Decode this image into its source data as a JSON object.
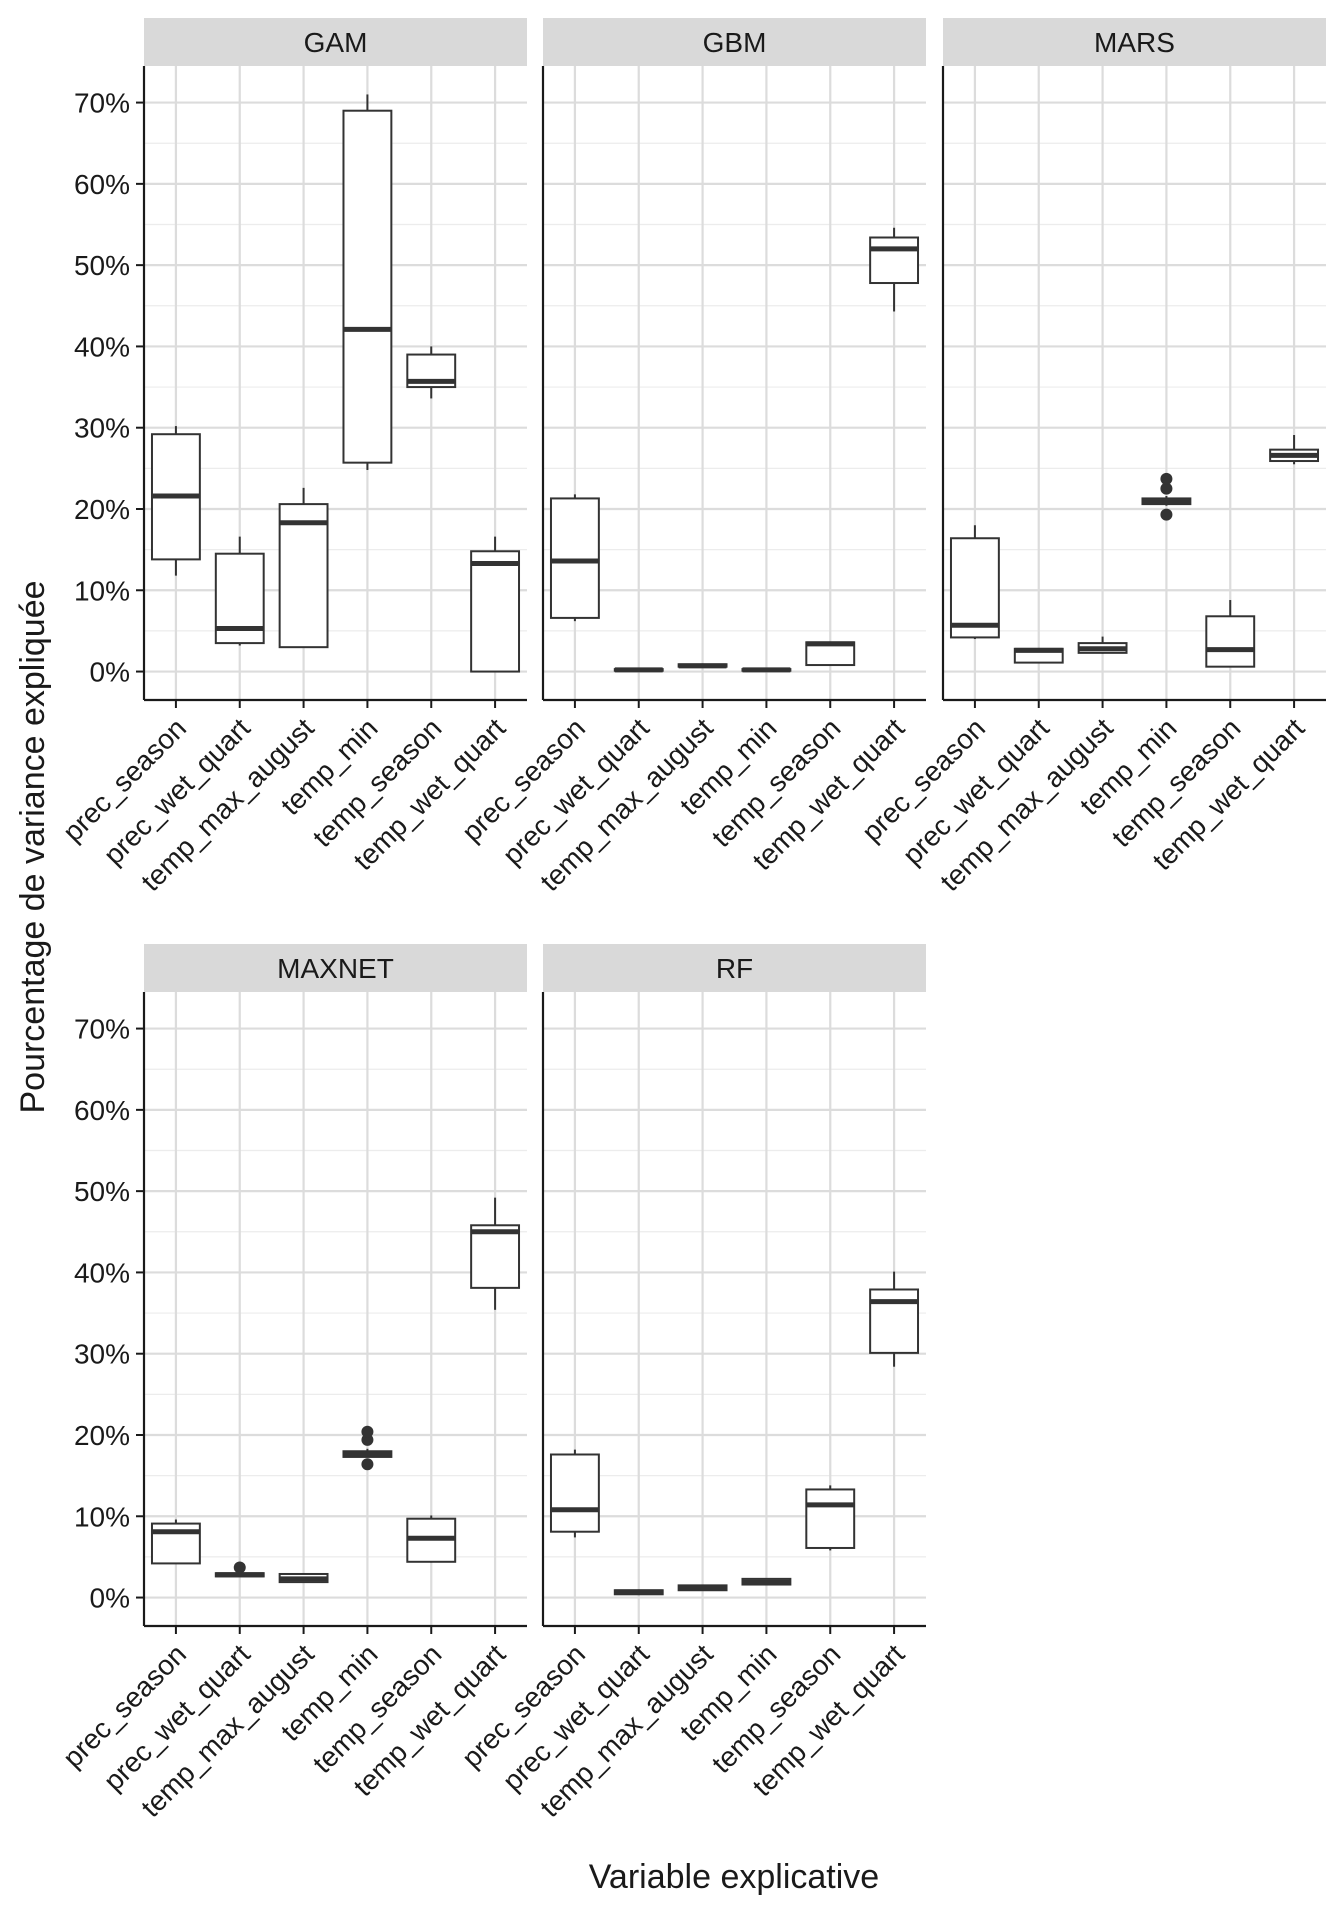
{
  "chart_data": {
    "type": "boxplot",
    "title": "",
    "xlabel": "Variable explicative",
    "ylabel": "Pourcentage de variance expliquée",
    "ylim": [
      -3.5,
      74.5
    ],
    "yticks": [
      0,
      10,
      20,
      30,
      40,
      50,
      60,
      70
    ],
    "ytick_labels": [
      "0%",
      "10%",
      "20%",
      "30%",
      "40%",
      "50%",
      "60%",
      "70%"
    ],
    "categories": [
      "prec_season",
      "prec_wet_quart",
      "temp_max_august",
      "temp_min",
      "temp_season",
      "temp_wet_quart"
    ],
    "grid": true,
    "panels": [
      {
        "name": "GAM",
        "boxes": [
          {
            "category": "prec_season",
            "whisker_low": 11.8,
            "q1": 13.8,
            "median": 21.6,
            "q3": 29.2,
            "whisker_high": 30.2,
            "outliers": []
          },
          {
            "category": "prec_wet_quart",
            "whisker_low": 3.2,
            "q1": 3.5,
            "median": 5.3,
            "q3": 14.5,
            "whisker_high": 16.6,
            "outliers": []
          },
          {
            "category": "temp_max_august",
            "whisker_low": 3.0,
            "q1": 3.0,
            "median": 18.3,
            "q3": 20.6,
            "whisker_high": 22.6,
            "outliers": []
          },
          {
            "category": "temp_min",
            "whisker_low": 24.8,
            "q1": 25.7,
            "median": 42.1,
            "q3": 69.0,
            "whisker_high": 71.0,
            "outliers": []
          },
          {
            "category": "temp_season",
            "whisker_low": 33.6,
            "q1": 35.0,
            "median": 35.7,
            "q3": 39.0,
            "whisker_high": 40.0,
            "outliers": []
          },
          {
            "category": "temp_wet_quart",
            "whisker_low": 0.0,
            "q1": 0.0,
            "median": 13.3,
            "q3": 14.8,
            "whisker_high": 16.6,
            "outliers": []
          }
        ]
      },
      {
        "name": "GBM",
        "boxes": [
          {
            "category": "prec_season",
            "whisker_low": 6.2,
            "q1": 6.6,
            "median": 13.6,
            "q3": 21.3,
            "whisker_high": 21.8,
            "outliers": []
          },
          {
            "category": "prec_wet_quart",
            "whisker_low": 0.1,
            "q1": 0.1,
            "median": 0.2,
            "q3": 0.3,
            "whisker_high": 0.4,
            "outliers": []
          },
          {
            "category": "temp_max_august",
            "whisker_low": 0.6,
            "q1": 0.6,
            "median": 0.7,
            "q3": 0.9,
            "whisker_high": 1.0,
            "outliers": []
          },
          {
            "category": "temp_min",
            "whisker_low": 0.1,
            "q1": 0.1,
            "median": 0.2,
            "q3": 0.3,
            "whisker_high": 0.4,
            "outliers": []
          },
          {
            "category": "temp_season",
            "whisker_low": 0.8,
            "q1": 0.8,
            "median": 3.4,
            "q3": 3.6,
            "whisker_high": 3.7,
            "outliers": []
          },
          {
            "category": "temp_wet_quart",
            "whisker_low": 44.3,
            "q1": 47.8,
            "median": 52.0,
            "q3": 53.4,
            "whisker_high": 54.6,
            "outliers": []
          }
        ]
      },
      {
        "name": "MARS",
        "boxes": [
          {
            "category": "prec_season",
            "whisker_low": 4.0,
            "q1": 4.2,
            "median": 5.7,
            "q3": 16.4,
            "whisker_high": 18.0,
            "outliers": []
          },
          {
            "category": "prec_wet_quart",
            "whisker_low": 1.1,
            "q1": 1.1,
            "median": 2.6,
            "q3": 2.8,
            "whisker_high": 2.9,
            "outliers": []
          },
          {
            "category": "temp_max_august",
            "whisker_low": 2.2,
            "q1": 2.3,
            "median": 2.8,
            "q3": 3.5,
            "whisker_high": 4.3,
            "outliers": []
          },
          {
            "category": "temp_min",
            "whisker_low": 20.4,
            "q1": 20.6,
            "median": 20.9,
            "q3": 21.3,
            "whisker_high": 21.6,
            "outliers": [
              19.3,
              22.5,
              23.7
            ]
          },
          {
            "category": "temp_season",
            "whisker_low": 0.6,
            "q1": 0.6,
            "median": 2.7,
            "q3": 6.8,
            "whisker_high": 8.8,
            "outliers": []
          },
          {
            "category": "temp_wet_quart",
            "whisker_low": 25.5,
            "q1": 25.9,
            "median": 26.6,
            "q3": 27.3,
            "whisker_high": 29.1,
            "outliers": []
          }
        ]
      },
      {
        "name": "MAXNET",
        "boxes": [
          {
            "category": "prec_season",
            "whisker_low": 4.2,
            "q1": 4.2,
            "median": 8.1,
            "q3": 9.1,
            "whisker_high": 9.6,
            "outliers": []
          },
          {
            "category": "prec_wet_quart",
            "whisker_low": 2.6,
            "q1": 2.6,
            "median": 2.8,
            "q3": 3.0,
            "whisker_high": 3.1,
            "outliers": [
              3.7
            ]
          },
          {
            "category": "temp_max_august",
            "whisker_low": 1.9,
            "q1": 1.9,
            "median": 2.3,
            "q3": 2.9,
            "whisker_high": 3.0,
            "outliers": []
          },
          {
            "category": "temp_min",
            "whisker_low": 17.3,
            "q1": 17.3,
            "median": 17.7,
            "q3": 18.0,
            "whisker_high": 18.3,
            "outliers": [
              16.4,
              19.4,
              20.4
            ]
          },
          {
            "category": "temp_season",
            "whisker_low": 4.3,
            "q1": 4.4,
            "median": 7.3,
            "q3": 9.7,
            "whisker_high": 10.1,
            "outliers": []
          },
          {
            "category": "temp_wet_quart",
            "whisker_low": 35.4,
            "q1": 38.1,
            "median": 45.0,
            "q3": 45.8,
            "whisker_high": 49.2,
            "outliers": []
          }
        ]
      },
      {
        "name": "RF",
        "boxes": [
          {
            "category": "prec_season",
            "whisker_low": 7.4,
            "q1": 8.1,
            "median": 10.8,
            "q3": 17.6,
            "whisker_high": 18.2,
            "outliers": []
          },
          {
            "category": "prec_wet_quart",
            "whisker_low": 0.4,
            "q1": 0.4,
            "median": 0.7,
            "q3": 0.9,
            "whisker_high": 1.0,
            "outliers": []
          },
          {
            "category": "temp_max_august",
            "whisker_low": 0.9,
            "q1": 0.9,
            "median": 1.2,
            "q3": 1.5,
            "whisker_high": 1.6,
            "outliers": []
          },
          {
            "category": "temp_min",
            "whisker_low": 1.6,
            "q1": 1.6,
            "median": 1.9,
            "q3": 2.3,
            "whisker_high": 2.4,
            "outliers": []
          },
          {
            "category": "temp_season",
            "whisker_low": 5.8,
            "q1": 6.1,
            "median": 11.4,
            "q3": 13.3,
            "whisker_high": 13.8,
            "outliers": []
          },
          {
            "category": "temp_wet_quart",
            "whisker_low": 28.4,
            "q1": 30.1,
            "median": 36.4,
            "q3": 37.9,
            "whisker_high": 40.1,
            "outliers": []
          }
        ]
      }
    ]
  }
}
